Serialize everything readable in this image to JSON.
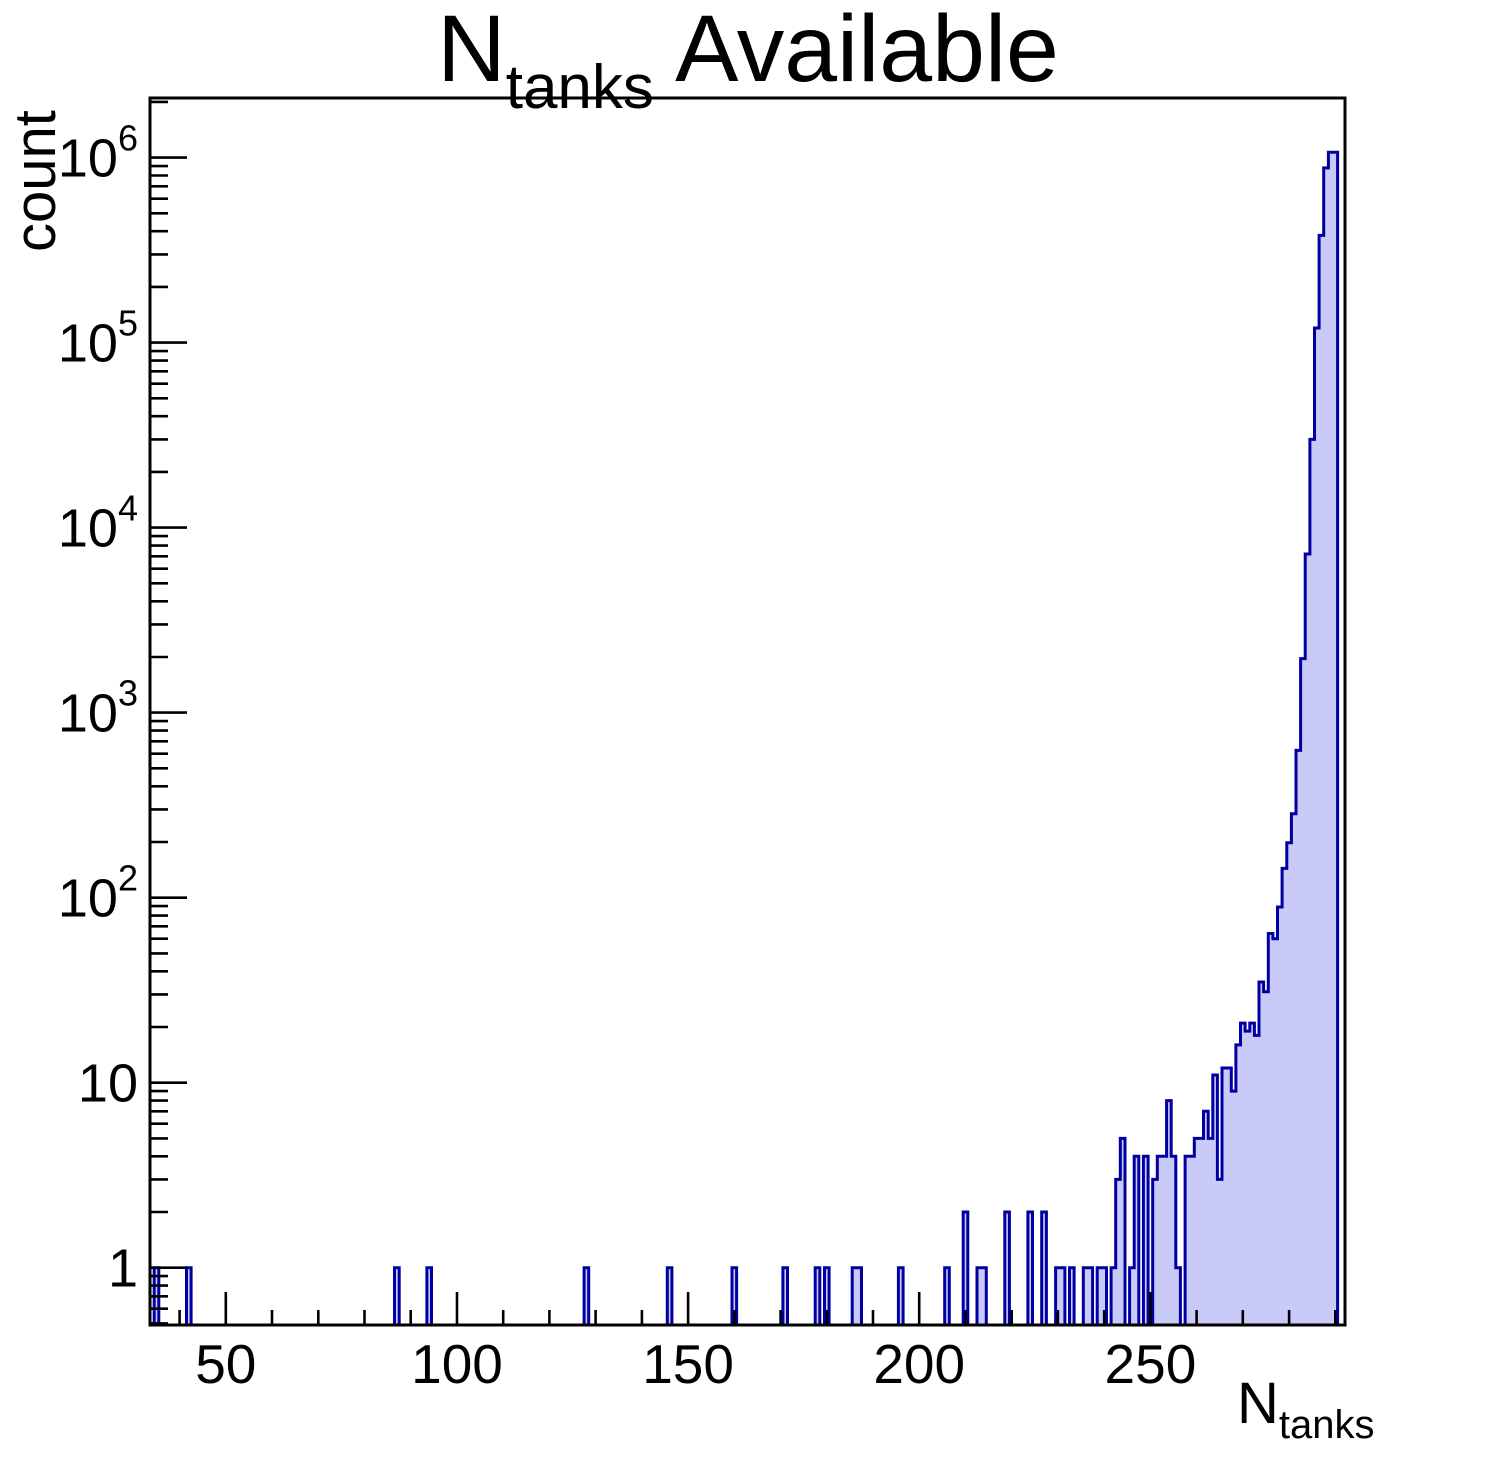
{
  "title": {
    "prefix": "N",
    "sub": "tanks",
    "suffix": " Available"
  },
  "y_axis": {
    "title": "count",
    "ticks": [
      {
        "v": 1,
        "base": "1",
        "exp": ""
      },
      {
        "v": 10,
        "base": "10",
        "exp": ""
      },
      {
        "v": 100,
        "base": "10",
        "exp": "2"
      },
      {
        "v": 1000,
        "base": "10",
        "exp": "3"
      },
      {
        "v": 10000,
        "base": "10",
        "exp": "4"
      },
      {
        "v": 100000,
        "base": "10",
        "exp": "5"
      },
      {
        "v": 1000000,
        "base": "10",
        "exp": "6"
      }
    ]
  },
  "x_axis": {
    "title_prefix": "N",
    "title_sub": "tanks",
    "ticks": [
      {
        "v": 50,
        "label": "50"
      },
      {
        "v": 100,
        "label": "100"
      },
      {
        "v": 150,
        "label": "150"
      },
      {
        "v": 200,
        "label": "200"
      },
      {
        "v": 250,
        "label": "250"
      }
    ],
    "minor_start": 40,
    "minor_end": 290,
    "minor_step": 10
  },
  "style": {
    "bar_fill": "#cacaf8",
    "bar_line": "#0000a2",
    "axis_color": "#000000",
    "background": "#ffffff"
  },
  "chart_data": {
    "type": "bar",
    "subtype": "step-histogram",
    "title": "N_tanks Available",
    "xlabel": "N_tanks",
    "ylabel": "count",
    "log_y": true,
    "grid": false,
    "legend": null,
    "xlim": [
      33.6,
      292.1
    ],
    "ylim": [
      0.49,
      2100000
    ],
    "bin_width": 1,
    "bins": [
      [
        35,
        1
      ],
      [
        42,
        1
      ],
      [
        87,
        1
      ],
      [
        94,
        1
      ],
      [
        128,
        1
      ],
      [
        146,
        1
      ],
      [
        160,
        1
      ],
      [
        171,
        1
      ],
      [
        178,
        1
      ],
      [
        180,
        1
      ],
      [
        186,
        1
      ],
      [
        187,
        1
      ],
      [
        196,
        1
      ],
      [
        206,
        1
      ],
      [
        210,
        2
      ],
      [
        213,
        1
      ],
      [
        214,
        1
      ],
      [
        219,
        2
      ],
      [
        224,
        2
      ],
      [
        227,
        2
      ],
      [
        230,
        1
      ],
      [
        231,
        1
      ],
      [
        233,
        1
      ],
      [
        236,
        1
      ],
      [
        237,
        1
      ],
      [
        239,
        1
      ],
      [
        240,
        1
      ],
      [
        242,
        1
      ],
      [
        243,
        3
      ],
      [
        244,
        5
      ],
      [
        246,
        1
      ],
      [
        247,
        4
      ],
      [
        249,
        4
      ],
      [
        251,
        3
      ],
      [
        252,
        4
      ],
      [
        253,
        4
      ],
      [
        254,
        8
      ],
      [
        255,
        4
      ],
      [
        256,
        1
      ],
      [
        258,
        4
      ],
      [
        259,
        4
      ],
      [
        260,
        5
      ],
      [
        261,
        5
      ],
      [
        262,
        7
      ],
      [
        263,
        5
      ],
      [
        264,
        11
      ],
      [
        265,
        3
      ],
      [
        266,
        12
      ],
      [
        267,
        12
      ],
      [
        268,
        9
      ],
      [
        269,
        16
      ],
      [
        270,
        21
      ],
      [
        271,
        19
      ],
      [
        272,
        21
      ],
      [
        273,
        18
      ],
      [
        274,
        35
      ],
      [
        275,
        31
      ],
      [
        276,
        64
      ],
      [
        277,
        60
      ],
      [
        278,
        89
      ],
      [
        279,
        144
      ],
      [
        280,
        198
      ],
      [
        281,
        284
      ],
      [
        282,
        625
      ],
      [
        283,
        1960
      ],
      [
        284,
        7200
      ],
      [
        285,
        30000
      ],
      [
        286,
        120000
      ],
      [
        287,
        380000
      ],
      [
        288,
        880000
      ],
      [
        289,
        1070000
      ],
      [
        290,
        1070000
      ]
    ]
  }
}
